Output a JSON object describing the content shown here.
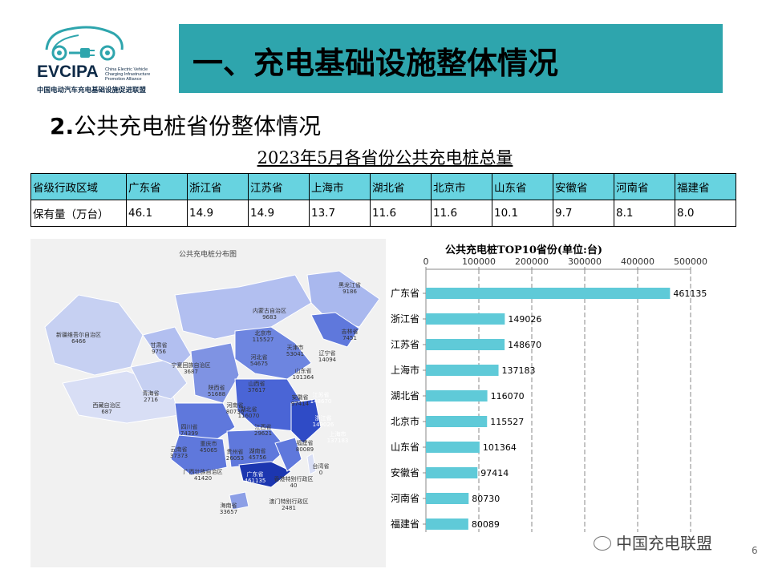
{
  "logo": {
    "brand": "EVCIPA",
    "english": "China Electric Vehicle Charging Infrastructure Promotion Alliance",
    "chinese": "中国电动汽车充电基础设施促进联盟"
  },
  "header": {
    "title": "一、充电基础设施整体情况"
  },
  "section": {
    "subtitle_num": "2.",
    "subtitle_text": "公共充电桩省份整体情况"
  },
  "table": {
    "title": "2023年5月各省份公共充电桩总量",
    "header": [
      "省级行政区域",
      "广东省",
      "浙江省",
      "江苏省",
      "上海市",
      "湖北省",
      "北京市",
      "山东省",
      "安徽省",
      "河南省",
      "福建省"
    ],
    "row": [
      "保有量（万台）",
      "46.1",
      "14.9",
      "14.9",
      "13.7",
      "11.6",
      "11.6",
      "10.1",
      "9.7",
      "8.1",
      "8.0"
    ]
  },
  "map": {
    "title": "公共充电桩分布图",
    "labels": [
      {
        "name": "黑龙江省",
        "value": "9186"
      },
      {
        "name": "吉林省",
        "value": "7451"
      },
      {
        "name": "辽宁省",
        "value": "14094"
      },
      {
        "name": "内蒙古自治区",
        "value": "9683"
      },
      {
        "name": "北京市",
        "value": "115527"
      },
      {
        "name": "天津市",
        "value": "53041"
      },
      {
        "name": "河北省",
        "value": "54675"
      },
      {
        "name": "山西省",
        "value": "37617"
      },
      {
        "name": "山东省",
        "value": "101364"
      },
      {
        "name": "新疆维吾尔自治区",
        "value": "6466"
      },
      {
        "name": "甘肃省",
        "value": "9756"
      },
      {
        "name": "宁夏回族自治区",
        "value": "3687"
      },
      {
        "name": "青海省",
        "value": "2716"
      },
      {
        "name": "陕西省",
        "value": "51688"
      },
      {
        "name": "河南省",
        "value": "80730"
      },
      {
        "name": "江苏省",
        "value": "148670"
      },
      {
        "name": "安徽省",
        "value": "97414"
      },
      {
        "name": "西藏自治区",
        "value": "687"
      },
      {
        "name": "四川省",
        "value": "74399"
      },
      {
        "name": "湖北省",
        "value": "116070"
      },
      {
        "name": "浙江省",
        "value": "149026"
      },
      {
        "name": "上海市",
        "value": "137183"
      },
      {
        "name": "重庆市",
        "value": "45065"
      },
      {
        "name": "江西省",
        "value": "29621"
      },
      {
        "name": "湖南省",
        "value": "45756"
      },
      {
        "name": "贵州省",
        "value": "26053"
      },
      {
        "name": "福建省",
        "value": "80089"
      },
      {
        "name": "云南省",
        "value": "37373"
      },
      {
        "name": "台湾省",
        "value": "0"
      },
      {
        "name": "广西壮族自治区",
        "value": "41420"
      },
      {
        "name": "广东省",
        "value": "461135"
      },
      {
        "name": "香港特别行政区",
        "value": "40"
      },
      {
        "name": "澳门特别行政区",
        "value": "2481"
      },
      {
        "name": "海南省",
        "value": "33657"
      }
    ]
  },
  "chart_data": {
    "type": "bar",
    "orientation": "horizontal",
    "title": "公共充电桩TOP10省份(单位:台)",
    "categories": [
      "广东省",
      "浙江省",
      "江苏省",
      "上海市",
      "湖北省",
      "北京市",
      "山东省",
      "安徽省",
      "河南省",
      "福建省"
    ],
    "values": [
      461135,
      149026,
      148670,
      137183,
      116070,
      115527,
      101364,
      97414,
      80730,
      80089
    ],
    "value_labels": [
      "461135",
      "149026",
      "148670",
      "137183",
      "116070",
      "115527",
      "101364",
      "97414",
      "80730",
      "80089"
    ],
    "xlim": [
      0,
      500000
    ],
    "xticks": [
      0,
      100000,
      200000,
      300000,
      400000,
      500000
    ],
    "xtick_labels": [
      "0",
      "100000",
      "200000",
      "300000",
      "400000",
      "500000"
    ],
    "axis_position": "top",
    "grid": true,
    "bar_color": "#5fcad8"
  },
  "footer": {
    "watermark": "中国充电联盟",
    "page": "6"
  }
}
